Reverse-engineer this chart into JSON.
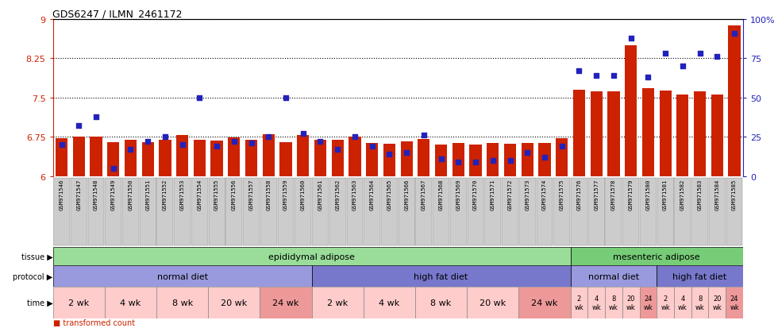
{
  "title": "GDS6247 / ILMN_2461172",
  "samples": [
    "GSM971546",
    "GSM971547",
    "GSM971548",
    "GSM971549",
    "GSM971550",
    "GSM971551",
    "GSM971552",
    "GSM971553",
    "GSM971554",
    "GSM971555",
    "GSM971556",
    "GSM971557",
    "GSM971558",
    "GSM971559",
    "GSM971560",
    "GSM971561",
    "GSM971562",
    "GSM971563",
    "GSM971564",
    "GSM971565",
    "GSM971566",
    "GSM971567",
    "GSM971568",
    "GSM971569",
    "GSM971570",
    "GSM971571",
    "GSM971572",
    "GSM971573",
    "GSM971574",
    "GSM971575",
    "GSM971576",
    "GSM971577",
    "GSM971578",
    "GSM971579",
    "GSM971580",
    "GSM971581",
    "GSM971582",
    "GSM971583",
    "GSM971584",
    "GSM971585"
  ],
  "bar_values": [
    6.72,
    6.76,
    6.76,
    6.65,
    6.7,
    6.65,
    6.7,
    6.79,
    6.7,
    6.68,
    6.74,
    6.7,
    6.8,
    6.65,
    6.79,
    6.69,
    6.69,
    6.75,
    6.63,
    6.62,
    6.66,
    6.71,
    6.6,
    6.63,
    6.6,
    6.63,
    6.62,
    6.63,
    6.63,
    6.72,
    7.65,
    7.62,
    7.62,
    8.5,
    7.68,
    7.63,
    7.55,
    7.62,
    7.56,
    8.87
  ],
  "percentile_values": [
    20,
    32,
    38,
    5,
    17,
    22,
    25,
    20,
    50,
    19,
    22,
    21,
    25,
    50,
    27,
    22,
    17,
    25,
    19,
    14,
    15,
    26,
    11,
    9,
    9,
    10,
    10,
    15,
    12,
    19,
    67,
    64,
    64,
    88,
    63,
    78,
    70,
    78,
    76,
    91
  ],
  "ylim": [
    6.0,
    9.0
  ],
  "yticks": [
    6.0,
    6.75,
    7.5,
    8.25,
    9.0
  ],
  "ytick_labels": [
    "6",
    "6.75",
    "7.5",
    "8.25",
    "9"
  ],
  "right_yticks": [
    0,
    25,
    50,
    75,
    100
  ],
  "right_ytick_labels": [
    "0",
    "25",
    "50",
    "75",
    "100%"
  ],
  "bar_color": "#cc2200",
  "dot_color": "#2222bb",
  "bar_base": 6.0,
  "background_color": "#ffffff",
  "axis_label_color_left": "#cc2200",
  "axis_label_color_right": "#2222bb",
  "tissue_groups": [
    {
      "label": "epididymal adipose",
      "start": 0,
      "end": 30,
      "color": "#99dd99"
    },
    {
      "label": "mesenteric adipose",
      "start": 30,
      "end": 40,
      "color": "#77cc77"
    }
  ],
  "protocol_groups": [
    {
      "label": "normal diet",
      "start": 0,
      "end": 15,
      "color": "#9999dd"
    },
    {
      "label": "high fat diet",
      "start": 15,
      "end": 30,
      "color": "#7777cc"
    },
    {
      "label": "normal diet",
      "start": 30,
      "end": 35,
      "color": "#9999dd"
    },
    {
      "label": "high fat diet",
      "start": 35,
      "end": 40,
      "color": "#7777cc"
    }
  ],
  "time_groups": [
    {
      "label": "2 wk",
      "start": 0,
      "end": 3,
      "color": "#ffcccc",
      "small": false
    },
    {
      "label": "4 wk",
      "start": 3,
      "end": 6,
      "color": "#ffcccc",
      "small": false
    },
    {
      "label": "8 wk",
      "start": 6,
      "end": 9,
      "color": "#ffcccc",
      "small": false
    },
    {
      "label": "20 wk",
      "start": 9,
      "end": 12,
      "color": "#ffcccc",
      "small": false
    },
    {
      "label": "24 wk",
      "start": 12,
      "end": 15,
      "color": "#ee9999",
      "small": false
    },
    {
      "label": "2 wk",
      "start": 15,
      "end": 18,
      "color": "#ffcccc",
      "small": false
    },
    {
      "label": "4 wk",
      "start": 18,
      "end": 21,
      "color": "#ffcccc",
      "small": false
    },
    {
      "label": "8 wk",
      "start": 21,
      "end": 24,
      "color": "#ffcccc",
      "small": false
    },
    {
      "label": "20 wk",
      "start": 24,
      "end": 27,
      "color": "#ffcccc",
      "small": false
    },
    {
      "label": "24 wk",
      "start": 27,
      "end": 30,
      "color": "#ee9999",
      "small": false
    },
    {
      "label": "2\nwk",
      "start": 30,
      "end": 31,
      "color": "#ffcccc",
      "small": true
    },
    {
      "label": "4\nwk",
      "start": 31,
      "end": 32,
      "color": "#ffcccc",
      "small": true
    },
    {
      "label": "8\nwk",
      "start": 32,
      "end": 33,
      "color": "#ffcccc",
      "small": true
    },
    {
      "label": "20\nwk",
      "start": 33,
      "end": 34,
      "color": "#ffcccc",
      "small": true
    },
    {
      "label": "24\nwk",
      "start": 34,
      "end": 35,
      "color": "#ee9999",
      "small": true
    },
    {
      "label": "2\nwk",
      "start": 35,
      "end": 36,
      "color": "#ffcccc",
      "small": true
    },
    {
      "label": "4\nwk",
      "start": 36,
      "end": 37,
      "color": "#ffcccc",
      "small": true
    },
    {
      "label": "8\nwk",
      "start": 37,
      "end": 38,
      "color": "#ffcccc",
      "small": true
    },
    {
      "label": "20\nwk",
      "start": 38,
      "end": 39,
      "color": "#ffcccc",
      "small": true
    },
    {
      "label": "24\nwk",
      "start": 39,
      "end": 40,
      "color": "#ee9999",
      "small": true
    }
  ]
}
